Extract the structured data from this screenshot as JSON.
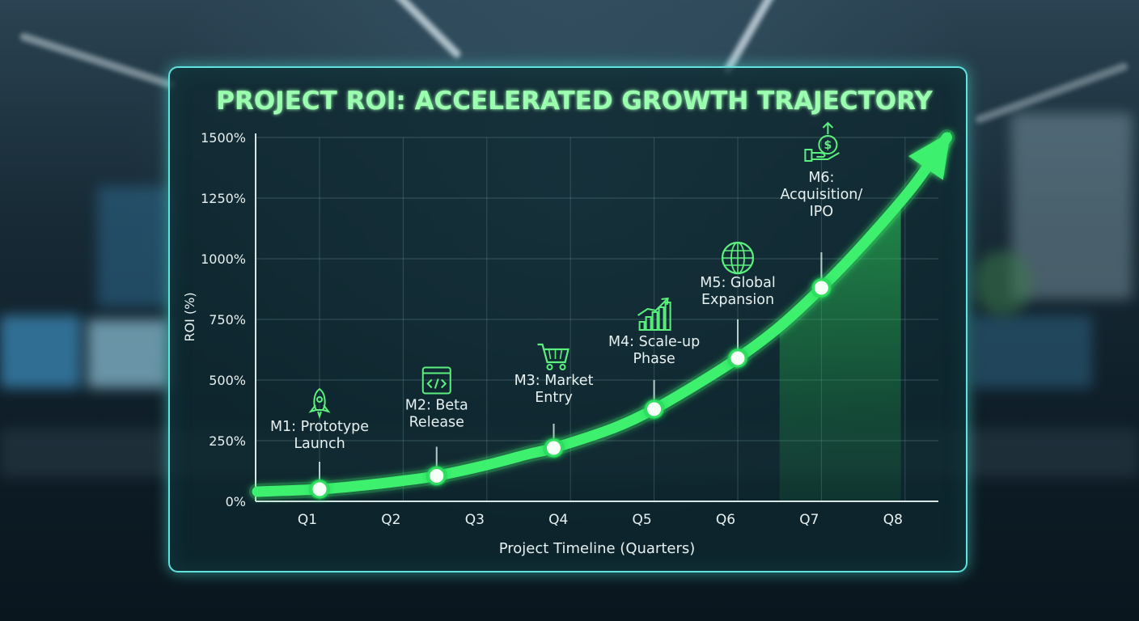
{
  "chart_data": {
    "type": "line",
    "title": "PROJECT ROI: ACCELERATED GROWTH TRAJECTORY",
    "xlabel": "Project Timeline (Quarters)",
    "ylabel": "ROI (%)",
    "categories": [
      "Q1",
      "Q2",
      "Q3",
      "Q4",
      "Q5",
      "Q6",
      "Q7",
      "Q8"
    ],
    "yticks": [
      "0%",
      "250%",
      "500%",
      "750%",
      "1000%",
      "1250%",
      "1500%"
    ],
    "ylim": [
      0,
      1500
    ],
    "grid": true,
    "milestones": [
      {
        "label_lines": [
          "M1: Prototype",
          "Launch"
        ],
        "x": 1.0,
        "y": 50,
        "icon": "rocket-icon"
      },
      {
        "label_lines": [
          "M2: Beta",
          "Release"
        ],
        "x": 2.4,
        "y": 105,
        "icon": "code-window-icon"
      },
      {
        "label_lines": [
          "M3: Market",
          "Entry"
        ],
        "x": 3.8,
        "y": 220,
        "icon": "shopping-cart-icon"
      },
      {
        "label_lines": [
          "M4: Scale-up",
          "Phase"
        ],
        "x": 5.0,
        "y": 380,
        "icon": "growth-bars-icon"
      },
      {
        "label_lines": [
          "M5: Global",
          "Expansion"
        ],
        "x": 6.0,
        "y": 590,
        "icon": "globe-icon"
      },
      {
        "label_lines": [
          "M6:",
          "Acquisition/",
          "IPO"
        ],
        "x": 7.0,
        "y": 880,
        "icon": "money-hand-icon"
      }
    ],
    "curve": {
      "x": [
        0.2,
        1.0,
        1.5,
        2.0,
        2.4,
        3.0,
        3.5,
        3.8,
        4.5,
        5.0,
        5.5,
        6.0,
        6.5,
        7.0,
        7.5,
        8.1,
        8.5
      ],
      "y": [
        40,
        50,
        65,
        85,
        105,
        150,
        195,
        220,
        300,
        380,
        480,
        590,
        720,
        880,
        1060,
        1300,
        1500
      ]
    },
    "colors": {
      "line": "#3df06e",
      "line_glow": "#8bff9e",
      "fill": "#2fd85a",
      "panel_border": "#5fe3dc",
      "title": "#9bffb0",
      "icon": "#5cf07e",
      "text": "#e6f1f0"
    }
  }
}
